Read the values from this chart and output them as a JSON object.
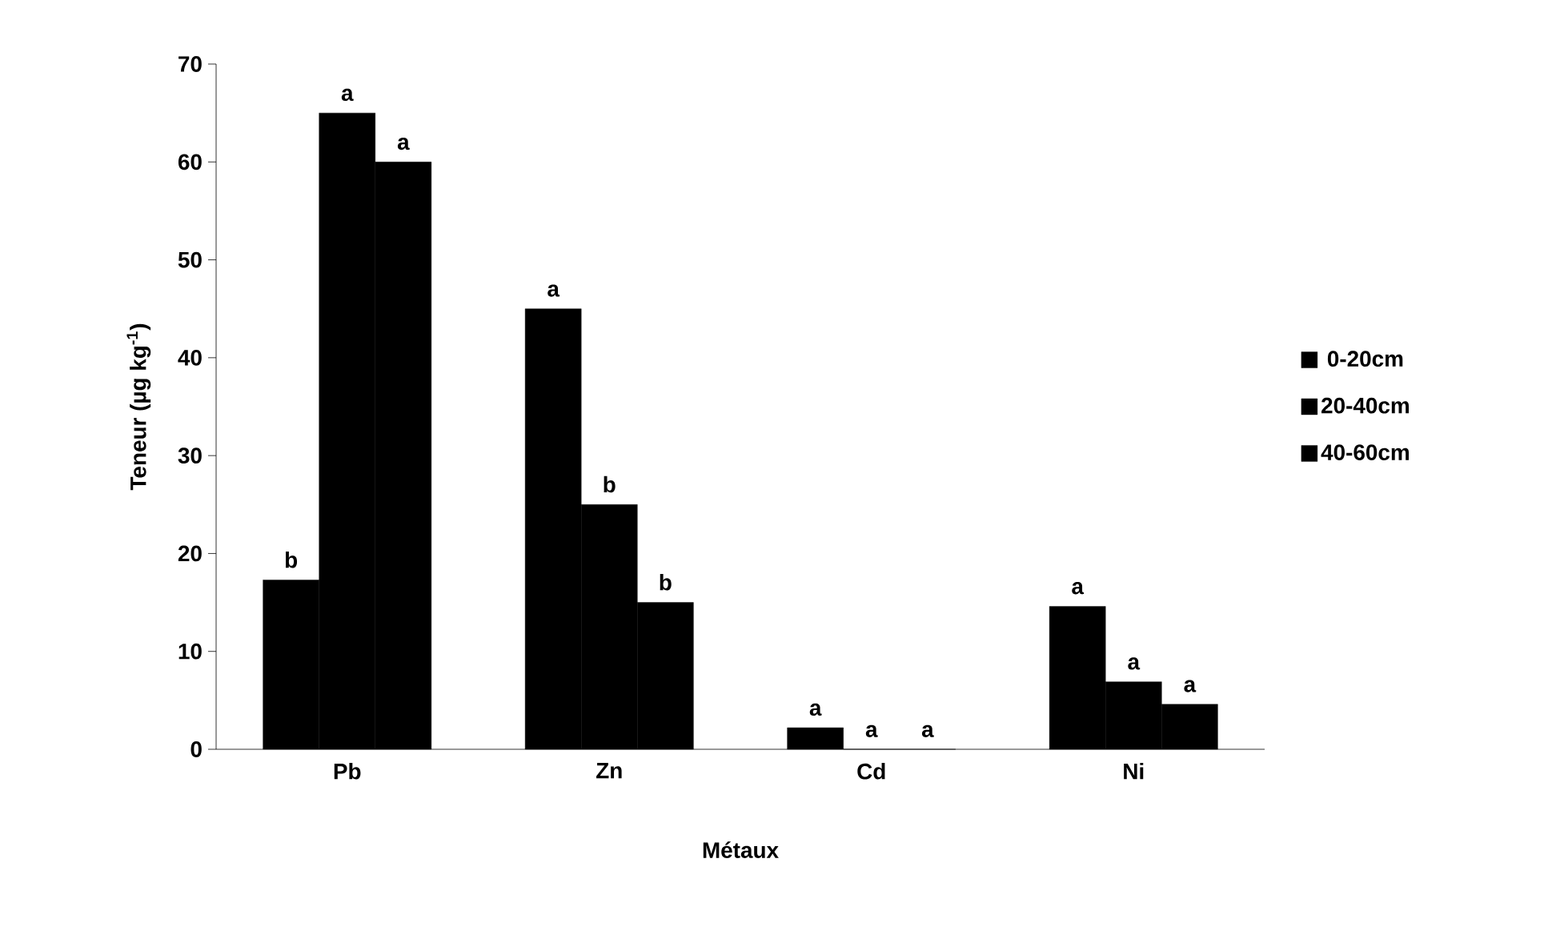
{
  "chart_data": {
    "type": "bar",
    "xlabel": "Métaux",
    "ylabel": "Teneur (µg kg$^{-1}$)",
    "categories": [
      "Pb",
      "Zn",
      "Cd",
      "Ni"
    ],
    "series": [
      {
        "name": "0-20cm",
        "color": "#000000",
        "values": [
          17.3,
          45,
          2.2,
          14.6
        ],
        "value_labels": [
          "b",
          "a",
          "a",
          "a"
        ]
      },
      {
        "name": "20-40cm",
        "color": "#000000",
        "values": [
          65,
          25,
          0,
          6.9
        ],
        "value_labels": [
          "a",
          "b",
          "a",
          "a"
        ]
      },
      {
        "name": "40-60cm",
        "color": "#000000",
        "values": [
          60,
          15,
          0,
          4.6
        ],
        "value_labels": [
          "a",
          "b",
          "a",
          "a"
        ]
      }
    ],
    "ylim": [
      0,
      70
    ],
    "yticks": [
      0,
      10,
      20,
      30,
      40,
      50,
      60,
      70
    ],
    "legend": "right",
    "grid": false
  }
}
